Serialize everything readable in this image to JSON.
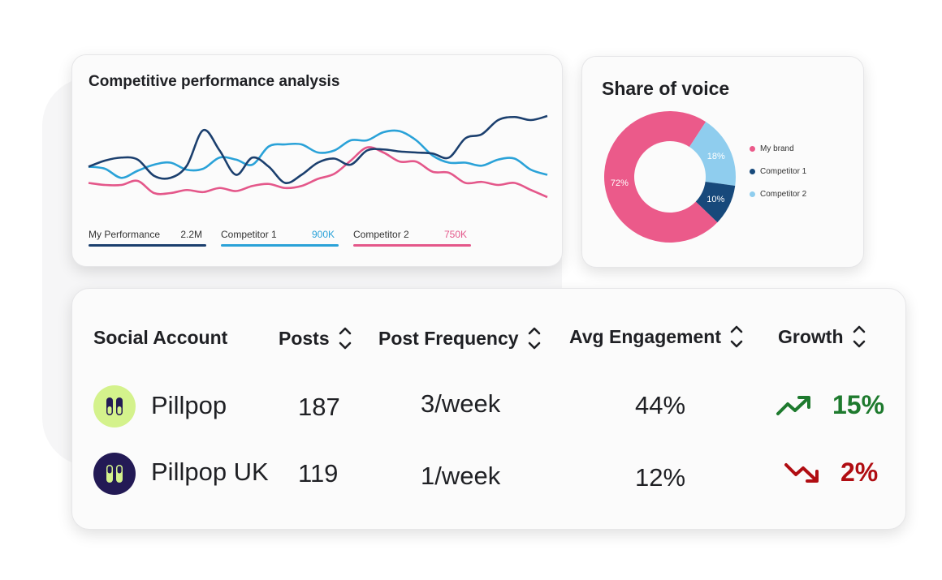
{
  "colors": {
    "my_performance": "#1b3f6e",
    "competitor_1": "#2aa2d8",
    "competitor_2": "#e4578a",
    "donut_my_brand": "#eb5a8a",
    "donut_competitor_1": "#17497b",
    "donut_competitor_2": "#8fcdee",
    "growth_up": "#1e7a2e",
    "growth_down": "#b00d12",
    "avatar_light": "#d4f28c",
    "avatar_dark": "#231a55"
  },
  "performance": {
    "title": "Competitive performance analysis",
    "chart_data": {
      "type": "line",
      "title": "Competitive performance analysis",
      "xlabel": "",
      "ylabel": "",
      "grid": false,
      "legend": "bottom",
      "series": [
        {
          "name": "My Performance",
          "total": "2.2M",
          "values": [
            46,
            52,
            55,
            53,
            37,
            35,
            47,
            82,
            62,
            38,
            55,
            46,
            30,
            38,
            50,
            54,
            48,
            62,
            63,
            61,
            60,
            59,
            55,
            74,
            78,
            92,
            95,
            92,
            96
          ]
        },
        {
          "name": "Competitor 1",
          "total": "900K",
          "values": [
            46,
            44,
            35,
            42,
            48,
            50,
            43,
            44,
            55,
            53,
            48,
            66,
            68,
            68,
            60,
            62,
            72,
            72,
            80,
            81,
            72,
            57,
            50,
            50,
            47,
            53,
            54,
            43,
            38
          ]
        },
        {
          "name": "Competitor 2",
          "total": "750K",
          "values": [
            30,
            28,
            28,
            32,
            20,
            20,
            23,
            21,
            25,
            22,
            27,
            29,
            25,
            27,
            34,
            39,
            52,
            65,
            60,
            51,
            51,
            41,
            40,
            30,
            31,
            28,
            30,
            23,
            16
          ]
        }
      ]
    }
  },
  "share_of_voice": {
    "title": "Share of voice",
    "chart_data": {
      "type": "pie",
      "title": "Share of voice",
      "legend": "right",
      "slices": [
        {
          "name": "My brand",
          "value": 72,
          "label": "72%"
        },
        {
          "name": "Competitor 2",
          "value": 18,
          "label": "18%"
        },
        {
          "name": "Competitor 1",
          "value": 10,
          "label": "10%"
        }
      ],
      "legend_order": [
        "My brand",
        "Competitor 1",
        "Competitor 2"
      ]
    }
  },
  "table": {
    "headers": {
      "account": "Social Account",
      "posts": "Posts",
      "frequency": "Post Frequency",
      "engagement": "Avg Engagement",
      "growth": "Growth"
    },
    "rows": [
      {
        "account": "Pillpop",
        "posts": "187",
        "frequency": "3/week",
        "engagement": "44%",
        "growth": "15%",
        "trend": "up",
        "avatar": "pill-icon"
      },
      {
        "account": "Pillpop UK",
        "posts": "119",
        "frequency": "1/week",
        "engagement": "12%",
        "growth": "2%",
        "trend": "down",
        "avatar": "pill-icon"
      }
    ]
  }
}
